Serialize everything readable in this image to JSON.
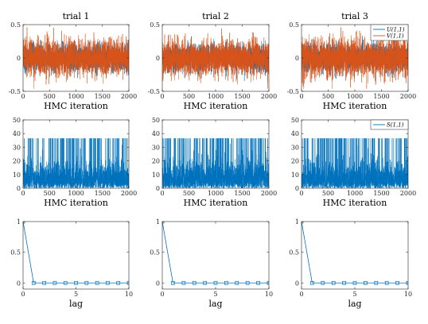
{
  "chart_data": [
    {
      "type": "line",
      "panel": "trace-U-V",
      "title": "trial 1",
      "xlabel": "HMC iteration",
      "xlim": [
        0,
        2000
      ],
      "ylim": [
        -0.5,
        0.5
      ],
      "xticks": [
        0,
        500,
        1000,
        1500,
        2000
      ],
      "yticks": [
        -0.5,
        0,
        0.5
      ],
      "xtick_labels": [
        "0",
        "500",
        "1000",
        "1500",
        "2000"
      ],
      "ytick_labels": [
        "-0.5",
        "0",
        "0.5"
      ],
      "series": [
        {
          "name": "U(1,1)",
          "color": "#0072BD",
          "n": 2000,
          "center": 0,
          "amplitude": 0.22
        },
        {
          "name": "V(1,1)",
          "color": "#D95319",
          "n": 2000,
          "center": 0,
          "amplitude": 0.3
        }
      ]
    },
    {
      "type": "line",
      "panel": "trace-U-V",
      "title": "trial 2",
      "xlabel": "HMC iteration",
      "xlim": [
        0,
        2000
      ],
      "ylim": [
        -0.5,
        0.5
      ],
      "xticks": [
        0,
        500,
        1000,
        1500,
        2000
      ],
      "yticks": [
        -0.5,
        0,
        0.5
      ],
      "xtick_labels": [
        "0",
        "500",
        "1000",
        "1500",
        "2000"
      ],
      "ytick_labels": [
        "-0.5",
        "0",
        "0.5"
      ],
      "series": [
        {
          "name": "U(1,1)",
          "color": "#0072BD",
          "n": 2000,
          "center": 0,
          "amplitude": 0.22
        },
        {
          "name": "V(1,1)",
          "color": "#D95319",
          "n": 2000,
          "center": 0,
          "amplitude": 0.28
        }
      ]
    },
    {
      "type": "line",
      "panel": "trace-U-V",
      "title": "trial 3",
      "xlabel": "HMC iteration",
      "xlim": [
        0,
        2000
      ],
      "ylim": [
        -0.5,
        0.5
      ],
      "xticks": [
        0,
        500,
        1000,
        1500,
        2000
      ],
      "yticks": [
        -0.5,
        0,
        0.5
      ],
      "xtick_labels": [
        "0",
        "500",
        "1000",
        "1500",
        "2000"
      ],
      "ytick_labels": [
        "-0.5",
        "0",
        "0.5"
      ],
      "legend": {
        "entries": [
          "U(1,1)",
          "V(1,1)"
        ],
        "placement": "top-right"
      },
      "series": [
        {
          "name": "U(1,1)",
          "color": "#0072BD",
          "n": 2000,
          "center": 0,
          "amplitude": 0.22
        },
        {
          "name": "V(1,1)",
          "color": "#D95319",
          "n": 2000,
          "center": 0,
          "amplitude": 0.32
        }
      ]
    },
    {
      "type": "line",
      "panel": "trace-S",
      "title": "",
      "xlabel": "HMC iteration",
      "xlim": [
        0,
        2000
      ],
      "ylim": [
        0,
        50
      ],
      "xticks": [
        0,
        500,
        1000,
        1500,
        2000
      ],
      "yticks": [
        0,
        10,
        20,
        30,
        40,
        50
      ],
      "xtick_labels": [
        "0",
        "500",
        "1000",
        "1500",
        "2000"
      ],
      "ytick_labels": [
        "0",
        "10",
        "20",
        "30",
        "40",
        "50"
      ],
      "series": [
        {
          "name": "S(1,1)",
          "color": "#0072BD",
          "n": 2000,
          "baseline_max": 19,
          "spike_value": 36.5
        }
      ]
    },
    {
      "type": "line",
      "panel": "trace-S",
      "title": "",
      "xlabel": "HMC iteration",
      "xlim": [
        0,
        2000
      ],
      "ylim": [
        0,
        50
      ],
      "xticks": [
        0,
        500,
        1000,
        1500,
        2000
      ],
      "yticks": [
        0,
        10,
        20,
        30,
        40,
        50
      ],
      "xtick_labels": [
        "0",
        "500",
        "1000",
        "1500",
        "2000"
      ],
      "ytick_labels": [
        "0",
        "10",
        "20",
        "30",
        "40",
        "50"
      ],
      "series": [
        {
          "name": "S(1,1)",
          "color": "#0072BD",
          "n": 2000,
          "baseline_max": 20,
          "spike_value": 36.5
        }
      ]
    },
    {
      "type": "line",
      "panel": "trace-S",
      "title": "",
      "xlabel": "HMC iteration",
      "xlim": [
        0,
        2000
      ],
      "ylim": [
        0,
        50
      ],
      "xticks": [
        0,
        500,
        1000,
        1500,
        2000
      ],
      "yticks": [
        0,
        10,
        20,
        30,
        40,
        50
      ],
      "xtick_labels": [
        "0",
        "500",
        "1000",
        "1500",
        "2000"
      ],
      "ytick_labels": [
        "0",
        "10",
        "20",
        "30",
        "40",
        "50"
      ],
      "legend": {
        "entries": [
          "S(1,1)"
        ],
        "placement": "top-right"
      },
      "series": [
        {
          "name": "S(1,1)",
          "color": "#0072BD",
          "n": 2000,
          "baseline_max": 19,
          "spike_value": 36.5
        }
      ]
    },
    {
      "type": "line",
      "panel": "autocorr",
      "title": "",
      "xlabel": "lag",
      "xlim": [
        0,
        10
      ],
      "ylim": [
        -0.1,
        1
      ],
      "xticks": [
        0,
        5,
        10
      ],
      "yticks": [
        0,
        0.5,
        1
      ],
      "xtick_labels": [
        "0",
        "5",
        "10"
      ],
      "ytick_labels": [
        "0",
        "0.5",
        "1"
      ],
      "series": [
        {
          "color": "#0072BD",
          "marker": "square",
          "x": [
            0,
            1,
            2,
            3,
            4,
            5,
            6,
            7,
            8,
            9,
            10
          ],
          "y": [
            1,
            0,
            0,
            0,
            0,
            0,
            0,
            0,
            0,
            0,
            0
          ]
        }
      ]
    },
    {
      "type": "line",
      "panel": "autocorr",
      "title": "",
      "xlabel": "lag",
      "xlim": [
        0,
        10
      ],
      "ylim": [
        -0.1,
        1
      ],
      "xticks": [
        0,
        5,
        10
      ],
      "yticks": [
        0,
        0.5,
        1
      ],
      "xtick_labels": [
        "0",
        "5",
        "10"
      ],
      "ytick_labels": [
        "0",
        "0.5",
        "1"
      ],
      "series": [
        {
          "color": "#0072BD",
          "marker": "square",
          "x": [
            0,
            1,
            2,
            3,
            4,
            5,
            6,
            7,
            8,
            9,
            10
          ],
          "y": [
            1,
            0,
            0,
            0,
            0,
            0,
            0,
            0,
            0,
            0,
            0
          ]
        }
      ]
    },
    {
      "type": "line",
      "panel": "autocorr",
      "title": "",
      "xlabel": "lag",
      "xlim": [
        0,
        10
      ],
      "ylim": [
        -0.1,
        1
      ],
      "xticks": [
        0,
        5,
        10
      ],
      "yticks": [
        0,
        0.5,
        1
      ],
      "xtick_labels": [
        "0",
        "5",
        "10"
      ],
      "ytick_labels": [
        "0",
        "0.5",
        "1"
      ],
      "series": [
        {
          "color": "#0072BD",
          "marker": "square",
          "x": [
            0,
            1,
            2,
            3,
            4,
            5,
            6,
            7,
            8,
            9,
            10
          ],
          "y": [
            1,
            0,
            0,
            0,
            0,
            0,
            0,
            0,
            0,
            0,
            0
          ]
        }
      ]
    }
  ]
}
